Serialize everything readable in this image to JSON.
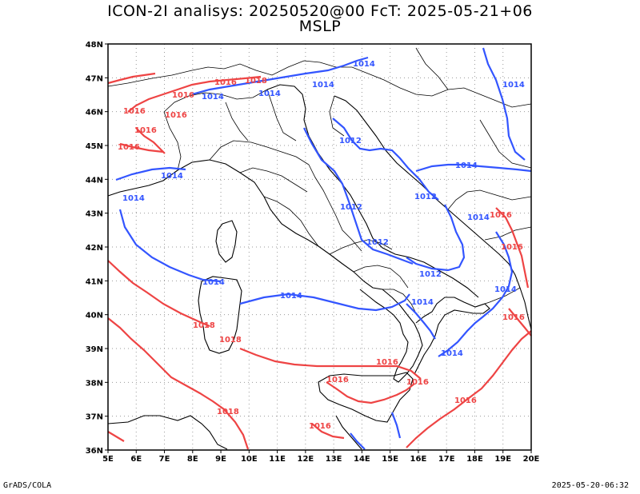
{
  "title": {
    "line1": "ICON-2I analisys: 20250520@00 FcT: 2025-05-21+06",
    "line2": "MSLP"
  },
  "footer": {
    "credit": "GrADS/COLA",
    "timestamp": "2025-05-20-06:32"
  },
  "colors": {
    "blue_isobar": "#3355ff",
    "red_isobar": "#ee4444",
    "coast": "#000000",
    "grid": "#999999"
  },
  "axes": {
    "lon_labels": [
      "5E",
      "6E",
      "7E",
      "8E",
      "9E",
      "10E",
      "11E",
      "12E",
      "13E",
      "14E",
      "15E",
      "16E",
      "17E",
      "18E",
      "19E",
      "20E"
    ],
    "lat_labels": [
      "48N",
      "47N",
      "46N",
      "45N",
      "44N",
      "43N",
      "42N",
      "41N",
      "40N",
      "39N",
      "38N",
      "37N",
      "36N"
    ],
    "lon_range": [
      5,
      20
    ],
    "lat_range": [
      36,
      48
    ],
    "grid": "dotted"
  },
  "isobars": {
    "blue_labels": [
      "1014",
      "1014",
      "1014",
      "1014",
      "1014",
      "1012",
      "1014",
      "1014",
      "1012",
      "1012",
      "1012",
      "1012",
      "1014",
      "1014",
      "1014",
      "1014",
      "1014",
      "1014",
      "1014"
    ],
    "red_labels": [
      "1016",
      "1018",
      "1016",
      "1016",
      "1016",
      "1016",
      "1016",
      "1016",
      "1018",
      "1016",
      "1018",
      "1016",
      "1016",
      "1016",
      "1016",
      "1016",
      "1018",
      "1016"
    ]
  }
}
